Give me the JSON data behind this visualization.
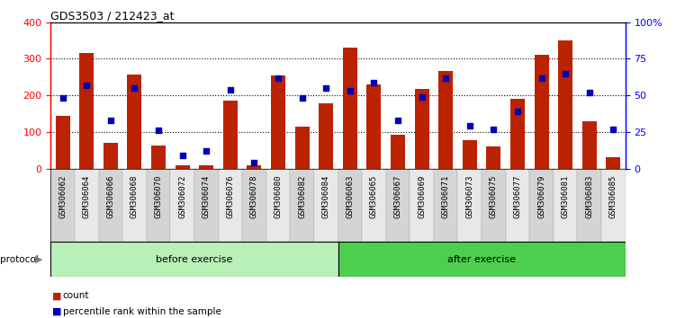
{
  "title": "GDS3503 / 212423_at",
  "categories": [
    "GSM306062",
    "GSM306064",
    "GSM306066",
    "GSM306068",
    "GSM306070",
    "GSM306072",
    "GSM306074",
    "GSM306076",
    "GSM306078",
    "GSM306080",
    "GSM306082",
    "GSM306084",
    "GSM306063",
    "GSM306065",
    "GSM306067",
    "GSM306069",
    "GSM306071",
    "GSM306073",
    "GSM306075",
    "GSM306077",
    "GSM306079",
    "GSM306081",
    "GSM306083",
    "GSM306085"
  ],
  "count_values": [
    145,
    315,
    70,
    258,
    62,
    10,
    10,
    185,
    8,
    255,
    115,
    178,
    330,
    230,
    93,
    218,
    268,
    77,
    60,
    190,
    310,
    350,
    130,
    30
  ],
  "percentile_values": [
    48,
    57,
    33,
    55,
    26,
    9,
    12,
    54,
    4,
    62,
    48,
    55,
    53,
    59,
    33,
    49,
    62,
    29,
    27,
    39,
    62,
    65,
    52,
    27
  ],
  "protocol_groups": [
    {
      "label": "before exercise",
      "start": 0,
      "end": 12,
      "color": "#b8f0b8"
    },
    {
      "label": "after exercise",
      "start": 12,
      "end": 24,
      "color": "#4dcf4d"
    }
  ],
  "bar_color": "#BB2200",
  "dot_color": "#0000BB",
  "left_ylim": [
    0,
    400
  ],
  "right_ylim": [
    0,
    100
  ],
  "left_yticks": [
    0,
    100,
    200,
    300,
    400
  ],
  "right_yticks": [
    0,
    25,
    50,
    75,
    100
  ],
  "right_yticklabels": [
    "0",
    "25",
    "50",
    "75",
    "100%"
  ],
  "bg_color": "#ffffff",
  "cell_color_odd": "#d4d4d4",
  "cell_color_even": "#e8e8e8"
}
